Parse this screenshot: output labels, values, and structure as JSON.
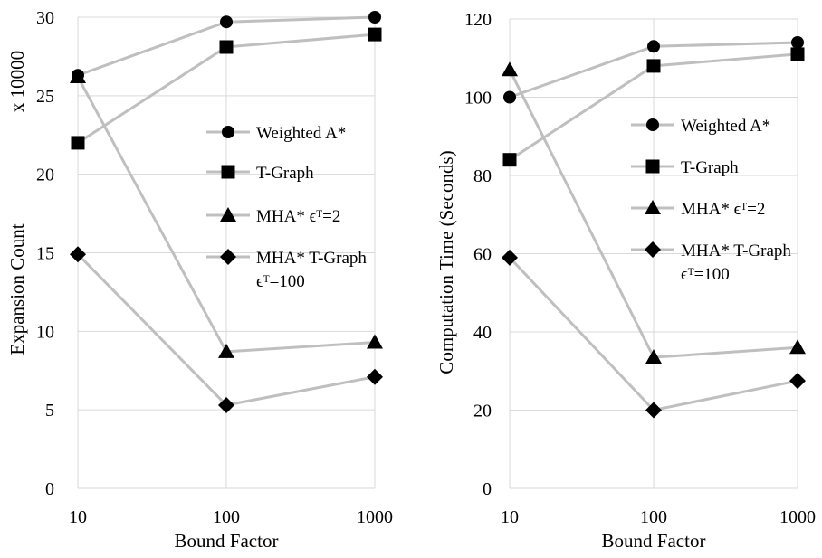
{
  "chart_data": [
    {
      "type": "line",
      "x": [
        10,
        100,
        1000
      ],
      "x_tick_labels": [
        "10",
        "100",
        "1000"
      ],
      "x_scale": "log",
      "xlabel": "Bound Factor",
      "ylabel": "Expansion Count",
      "y_multiplier_label": "x 10000",
      "ylim": [
        0,
        30
      ],
      "y_ticks": [
        "0",
        "5",
        "10",
        "15",
        "20",
        "25",
        "30"
      ],
      "grid": true,
      "legend_position": "right, inside plot",
      "series": [
        {
          "name": "Weighted A*",
          "marker": "circle",
          "values": [
            26.3,
            29.7,
            30.0
          ]
        },
        {
          "name": "T-Graph",
          "marker": "square",
          "values": [
            22.0,
            28.1,
            28.9
          ]
        },
        {
          "name": "MHA* ϵᵀ=2",
          "marker": "triangle",
          "values": [
            26.2,
            8.7,
            9.3
          ]
        },
        {
          "name": "MHA* T-Graph ϵᵀ=100",
          "marker": "diamond",
          "values": [
            14.9,
            5.3,
            7.1
          ]
        }
      ]
    },
    {
      "type": "line",
      "x": [
        10,
        100,
        1000
      ],
      "x_tick_labels": [
        "10",
        "100",
        "1000"
      ],
      "x_scale": "log",
      "xlabel": "Bound Factor",
      "ylabel": "Computation Time (Seconds)",
      "ylim": [
        0,
        120
      ],
      "y_ticks": [
        "0",
        "20",
        "40",
        "60",
        "80",
        "100",
        "120"
      ],
      "grid": true,
      "legend_position": "right, inside plot",
      "series": [
        {
          "name": "Weighted A*",
          "marker": "circle",
          "values": [
            100,
            113,
            114
          ]
        },
        {
          "name": "T-Graph",
          "marker": "square",
          "values": [
            84,
            108,
            111
          ]
        },
        {
          "name": "MHA* ϵᵀ=2",
          "marker": "triangle",
          "values": [
            107,
            33.5,
            36
          ]
        },
        {
          "name": "MHA* T-Graph ϵᵀ=100",
          "marker": "diamond",
          "values": [
            59,
            20,
            27.5
          ]
        }
      ]
    }
  ],
  "colors": {
    "line": "#bfbfbf",
    "marker": "#000000",
    "grid": "#d9d9d9"
  }
}
